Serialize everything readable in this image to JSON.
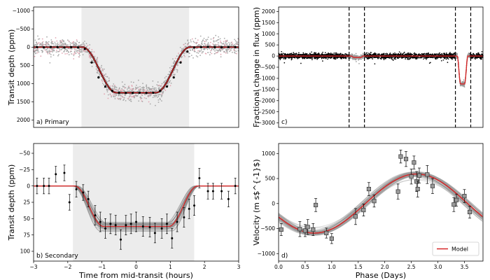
{
  "chart_data": [
    {
      "type": "scatter",
      "panel_label": "a) Primary",
      "xlabel": "",
      "ylabel": "Transit depth (ppm)",
      "xlim": [
        -3,
        3
      ],
      "ylim": [
        2200,
        -1100
      ],
      "x_ticks": [],
      "x_tick_labels": [],
      "y_ticks": [
        -1000,
        -500,
        0,
        500,
        1000,
        1500,
        2000
      ],
      "y_tick_labels": [
        "−1000",
        "−500",
        "0",
        "500",
        "1000",
        "1500",
        "2000"
      ],
      "shaded_region": [
        -1.6,
        1.55
      ],
      "model": {
        "depth": 1250,
        "t14": 3.15,
        "ingress": 1.0,
        "color": "#d62728"
      },
      "binned_x": [
        -2.9,
        -2.7,
        -2.5,
        -2.3,
        -2.1,
        -1.9,
        -1.7,
        -1.5,
        -1.3,
        -1.1,
        -0.9,
        -0.7,
        -0.5,
        -0.3,
        -0.1,
        0.1,
        0.3,
        0.5,
        0.7,
        0.9,
        1.1,
        1.3,
        1.5,
        1.7,
        1.9,
        2.1,
        2.3,
        2.5,
        2.7,
        2.9
      ],
      "binned_y": [
        0,
        5,
        -5,
        0,
        8,
        0,
        10,
        50,
        420,
        830,
        1080,
        1200,
        1250,
        1255,
        1255,
        1250,
        1255,
        1250,
        1200,
        1080,
        830,
        420,
        120,
        10,
        0,
        -5,
        0,
        5,
        0,
        0
      ],
      "raw_scatter": "grey/pink points, ~3000, scatter ~120 ppm"
    },
    {
      "type": "scatter",
      "panel_label": "b) Secondary",
      "xlabel": "Time from mid-transit (hours)",
      "ylabel": "Transit depth (ppm)",
      "xlim": [
        -3,
        3
      ],
      "ylim": [
        115,
        -65
      ],
      "x_ticks": [
        -3,
        -2,
        -1,
        0,
        1,
        2,
        3
      ],
      "x_tick_labels": [
        "−3",
        "−2",
        "−1",
        "0",
        "1",
        "2",
        "3"
      ],
      "y_ticks": [
        -50,
        -25,
        0,
        25,
        50,
        75,
        100
      ],
      "y_tick_labels": [
        "−50",
        "−25",
        "0",
        "25",
        "50",
        "75",
        "100"
      ],
      "shaded_region": [
        -1.85,
        1.7
      ],
      "model": {
        "depth": 62,
        "t14": 3.6,
        "ingress": 0.85,
        "color": "#d62728"
      },
      "data_x": [
        -2.9,
        -2.7,
        -2.55,
        -2.35,
        -2.1,
        -1.95,
        -1.75,
        -1.55,
        -1.4,
        -1.2,
        -1.05,
        -0.9,
        -0.75,
        -0.6,
        -0.45,
        -0.3,
        -0.15,
        0.0,
        0.2,
        0.4,
        0.55,
        0.75,
        0.9,
        1.05,
        1.2,
        1.4,
        1.55,
        1.7,
        1.85,
        2.1,
        2.25,
        2.5,
        2.7,
        2.9
      ],
      "data_y": [
        0,
        0,
        0,
        -18,
        -20,
        25,
        5,
        10,
        20,
        45,
        55,
        65,
        58,
        60,
        82,
        60,
        58,
        55,
        62,
        63,
        72,
        65,
        58,
        80,
        55,
        48,
        35,
        30,
        -12,
        8,
        8,
        8,
        20,
        0
      ],
      "data_err": [
        12,
        12,
        12,
        12,
        12,
        12,
        12,
        12,
        12,
        15,
        15,
        15,
        15,
        15,
        15,
        15,
        15,
        15,
        15,
        15,
        15,
        15,
        15,
        15,
        15,
        15,
        15,
        15,
        15,
        12,
        12,
        12,
        12,
        12
      ]
    },
    {
      "type": "scatter",
      "panel_label": "c)",
      "xlabel": "",
      "ylabel": "Fractional change in flux (ppm)",
      "xlim": [
        0,
        1
      ],
      "ylim": [
        -3200,
        2200
      ],
      "x_ticks": [],
      "x_tick_labels": [],
      "y_ticks": [
        -3000,
        -2500,
        -2000,
        -1500,
        -1000,
        -500,
        0,
        500,
        1000,
        1500,
        2000
      ],
      "y_tick_labels": [
        "−3000",
        "−2500",
        "−2000",
        "−1500",
        "−1000",
        "−500",
        "0",
        "500",
        "1000",
        "1500",
        "2000"
      ],
      "dashed_lines_x": [
        0.345,
        0.42,
        0.865,
        0.94
      ],
      "secondary_eclipse": {
        "center": 0.385,
        "depth": 62
      },
      "primary_transit": {
        "center": 0.9,
        "depth": 1250
      },
      "raw_scatter": "black points, scatter ~60 ppm"
    },
    {
      "type": "scatter",
      "panel_label": "d)",
      "xlabel": "Phase (Days)",
      "ylabel": "Velocity (m s$^{-1}$)",
      "xlim": [
        0.0,
        3.85
      ],
      "ylim": [
        -1150,
        1200
      ],
      "x_ticks": [
        0.0,
        0.5,
        1.0,
        1.5,
        2.0,
        2.5,
        3.0,
        3.5
      ],
      "x_tick_labels": [
        "0.0",
        "0.5",
        "1.0",
        "1.5",
        "2.0",
        "2.5",
        "3.0",
        "3.5"
      ],
      "y_ticks": [
        -1000,
        -500,
        0,
        500,
        1000
      ],
      "y_tick_labels": [
        "−1000",
        "−500",
        "0",
        "500",
        "1000"
      ],
      "legend": [
        {
          "label": "Model",
          "color": "#d62728"
        }
      ],
      "model": {
        "K": 590,
        "period": 3.85,
        "peak_phase": 2.6,
        "offset": 0
      },
      "data_x": [
        0.05,
        0.4,
        0.5,
        0.55,
        0.65,
        0.7,
        0.9,
        1.0,
        1.45,
        1.6,
        1.7,
        1.8,
        2.25,
        2.3,
        2.4,
        2.5,
        2.55,
        2.6,
        2.62,
        2.65,
        2.8,
        2.9,
        3.3,
        3.35,
        3.5,
        3.6
      ],
      "data_y": [
        -520,
        -510,
        -540,
        -470,
        -520,
        -30,
        -590,
        -700,
        -260,
        -130,
        290,
        50,
        240,
        940,
        890,
        540,
        820,
        440,
        290,
        560,
        580,
        350,
        -20,
        70,
        150,
        -170
      ],
      "data_err": [
        120,
        150,
        120,
        150,
        120,
        130,
        100,
        100,
        160,
        120,
        130,
        120,
        150,
        130,
        150,
        150,
        130,
        200,
        160,
        150,
        180,
        150,
        140,
        120,
        130,
        120
      ]
    }
  ]
}
